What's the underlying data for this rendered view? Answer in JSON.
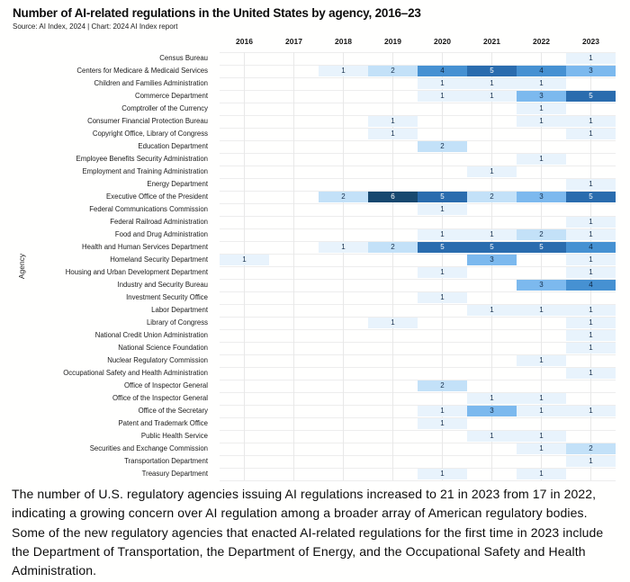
{
  "header": {
    "title": "Number of AI-related regulations in the United States by agency, 2016–23",
    "source": "Source: AI Index, 2024 | Chart: 2024 AI Index report"
  },
  "chart_data": {
    "type": "heatmap",
    "title": "Number of AI-related regulations in the United States by agency, 2016–23",
    "x": [
      "2016",
      "2017",
      "2018",
      "2019",
      "2020",
      "2021",
      "2022",
      "2023"
    ],
    "xlabel": "",
    "ylabel": "Agency",
    "legend": "none",
    "grid": "on",
    "value_colors": {
      "1": "#e8f3fc",
      "2": "#c3e1f8",
      "3": "#7cb9ee",
      "4": "#4691d2",
      "5": "#2a6cae",
      "6": "#17486f"
    },
    "value_text_colors": {
      "1": "#17304d",
      "2": "#17304d",
      "3": "#122c49",
      "4": "#0d2540",
      "5": "#ffffff",
      "6": "#ffffff"
    },
    "rows": [
      {
        "agency": "Census Bureau",
        "values": [
          null,
          null,
          null,
          null,
          null,
          null,
          null,
          1
        ]
      },
      {
        "agency": "Centers for Medicare & Medicaid Services",
        "values": [
          null,
          null,
          1,
          2,
          4,
          5,
          4,
          3
        ]
      },
      {
        "agency": "Children and Families Administration",
        "values": [
          null,
          null,
          null,
          null,
          1,
          1,
          1,
          null
        ]
      },
      {
        "agency": "Commerce Department",
        "values": [
          null,
          null,
          null,
          null,
          1,
          1,
          3,
          5
        ]
      },
      {
        "agency": "Comptroller of the Currency",
        "values": [
          null,
          null,
          null,
          null,
          null,
          null,
          1,
          null
        ]
      },
      {
        "agency": "Consumer Financial Protection Bureau",
        "values": [
          null,
          null,
          null,
          1,
          null,
          null,
          1,
          1
        ]
      },
      {
        "agency": "Copyright Office, Library of Congress",
        "values": [
          null,
          null,
          null,
          1,
          null,
          null,
          null,
          1
        ]
      },
      {
        "agency": "Education Department",
        "values": [
          null,
          null,
          null,
          null,
          2,
          null,
          null,
          null
        ]
      },
      {
        "agency": "Employee Benefits Security Administration",
        "values": [
          null,
          null,
          null,
          null,
          null,
          null,
          1,
          null
        ]
      },
      {
        "agency": "Employment and Training Administration",
        "values": [
          null,
          null,
          null,
          null,
          null,
          1,
          null,
          null
        ]
      },
      {
        "agency": "Energy Department",
        "values": [
          null,
          null,
          null,
          null,
          null,
          null,
          null,
          1
        ]
      },
      {
        "agency": "Executive Office of the President",
        "values": [
          null,
          null,
          2,
          6,
          5,
          2,
          3,
          5
        ]
      },
      {
        "agency": "Federal Communications Commission",
        "values": [
          null,
          null,
          null,
          null,
          1,
          null,
          null,
          null
        ]
      },
      {
        "agency": "Federal Railroad Administration",
        "values": [
          null,
          null,
          null,
          null,
          null,
          null,
          null,
          1
        ]
      },
      {
        "agency": "Food and Drug Administration",
        "values": [
          null,
          null,
          null,
          null,
          1,
          1,
          2,
          1
        ]
      },
      {
        "agency": "Health and Human Services Department",
        "values": [
          null,
          null,
          1,
          2,
          5,
          5,
          5,
          4
        ]
      },
      {
        "agency": "Homeland Security Department",
        "values": [
          1,
          null,
          null,
          null,
          null,
          3,
          null,
          1
        ]
      },
      {
        "agency": "Housing and Urban Development Department",
        "values": [
          null,
          null,
          null,
          null,
          1,
          null,
          null,
          1
        ]
      },
      {
        "agency": "Industry and Security Bureau",
        "values": [
          null,
          null,
          null,
          null,
          null,
          null,
          3,
          4
        ]
      },
      {
        "agency": "Investment Security Office",
        "values": [
          null,
          null,
          null,
          null,
          1,
          null,
          null,
          null
        ]
      },
      {
        "agency": "Labor Department",
        "values": [
          null,
          null,
          null,
          null,
          null,
          1,
          1,
          1
        ]
      },
      {
        "agency": "Library of Congress",
        "values": [
          null,
          null,
          null,
          1,
          null,
          null,
          null,
          1
        ]
      },
      {
        "agency": "National Credit Union Administration",
        "values": [
          null,
          null,
          null,
          null,
          null,
          null,
          null,
          1
        ]
      },
      {
        "agency": "National Science Foundation",
        "values": [
          null,
          null,
          null,
          null,
          null,
          null,
          null,
          1
        ]
      },
      {
        "agency": "Nuclear Regulatory Commission",
        "values": [
          null,
          null,
          null,
          null,
          null,
          null,
          1,
          null
        ]
      },
      {
        "agency": "Occupational Safety and Health Administration",
        "values": [
          null,
          null,
          null,
          null,
          null,
          null,
          null,
          1
        ]
      },
      {
        "agency": "Office of Inspector General",
        "values": [
          null,
          null,
          null,
          null,
          2,
          null,
          null,
          null
        ]
      },
      {
        "agency": "Office of the Inspector General",
        "values": [
          null,
          null,
          null,
          null,
          null,
          1,
          1,
          null
        ]
      },
      {
        "agency": "Office of the Secretary",
        "values": [
          null,
          null,
          null,
          null,
          1,
          3,
          1,
          1
        ]
      },
      {
        "agency": "Patent and Trademark Office",
        "values": [
          null,
          null,
          null,
          null,
          1,
          null,
          null,
          null
        ]
      },
      {
        "agency": "Public Health Service",
        "values": [
          null,
          null,
          null,
          null,
          null,
          1,
          1,
          null
        ]
      },
      {
        "agency": "Securities and Exchange Commission",
        "values": [
          null,
          null,
          null,
          null,
          null,
          null,
          1,
          2
        ]
      },
      {
        "agency": "Transportation Department",
        "values": [
          null,
          null,
          null,
          null,
          null,
          null,
          null,
          1
        ]
      },
      {
        "agency": "Treasury Department",
        "values": [
          null,
          null,
          null,
          null,
          1,
          null,
          1,
          null
        ]
      }
    ]
  },
  "footer": {
    "summary": "The number of U.S. regulatory agencies issuing AI regulations increased to 21 in 2023 from 17 in 2022, indicating a growing concern over AI regulation among a broader array of American regulatory bodies. Some of the new regulatory agencies that enacted AI-related regulations for the first time in 2023 include the Department of Transportation, the Department of Energy, and the Occupational Safety and Health Administration."
  }
}
